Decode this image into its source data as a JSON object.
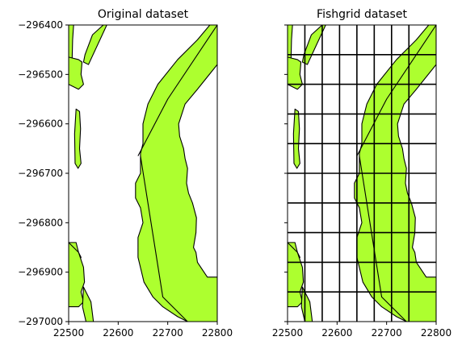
{
  "chart_data": [
    {
      "type": "map",
      "title": "Original dataset",
      "xlim": [
        22500,
        22800
      ],
      "ylim": [
        -297000,
        -296400
      ],
      "xticks": [
        "22500",
        "22600",
        "22700",
        "22800"
      ],
      "yticks": [
        "−296400",
        "−296500",
        "−296600",
        "−296700",
        "−296800",
        "−296900",
        "−297000"
      ],
      "fill_color": "#adff2f",
      "gridded": false
    },
    {
      "type": "map",
      "title": "Fishgrid dataset",
      "xlim": [
        22500,
        22800
      ],
      "ylim": [
        -297000,
        -296400
      ],
      "xticks": [
        "22500",
        "22600",
        "22700",
        "22800"
      ],
      "yticks": [],
      "fill_color": "#adff2f",
      "gridded": true,
      "grid_x": [
        22535,
        22570,
        22605,
        22640,
        22675,
        22710,
        22745
      ],
      "grid_y": [
        -296460,
        -296520,
        -296580,
        -296640,
        -296700,
        -296760,
        -296820,
        -296880,
        -296940
      ]
    }
  ]
}
